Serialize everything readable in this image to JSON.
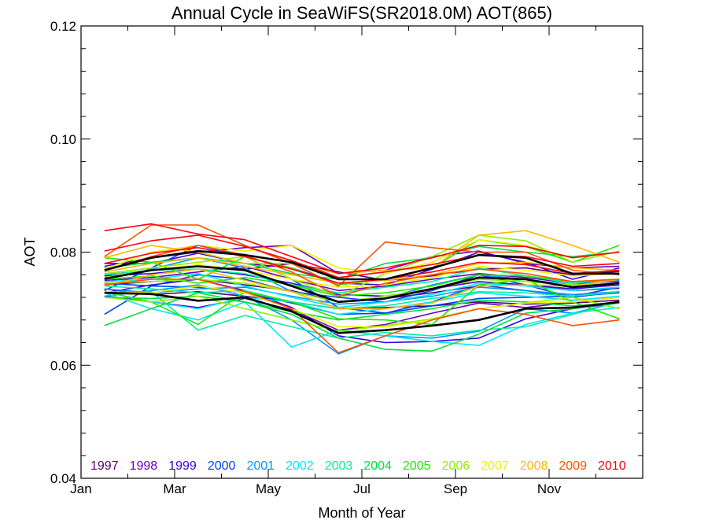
{
  "chart_data": {
    "type": "line",
    "title": "Annual Cycle in SeaWiFS(SR2018.0M) AOT(865)",
    "xlabel": "Month of Year",
    "ylabel": "AOT",
    "xlim": [
      1,
      13
    ],
    "ylim": [
      0.04,
      0.12
    ],
    "x_ticks": [
      {
        "x": 1,
        "label": "Jan"
      },
      {
        "x": 3,
        "label": "Mar"
      },
      {
        "x": 5,
        "label": "May"
      },
      {
        "x": 7,
        "label": "Jul"
      },
      {
        "x": 9,
        "label": "Sep"
      },
      {
        "x": 11,
        "label": "Nov"
      }
    ],
    "y_ticks": [
      {
        "y": 0.04,
        "label": "0.04"
      },
      {
        "y": 0.06,
        "label": "0.06"
      },
      {
        "y": 0.08,
        "label": "0.08"
      },
      {
        "y": 0.1,
        "label": "0.10"
      },
      {
        "y": 0.12,
        "label": "0.12"
      }
    ],
    "grid": false,
    "legend_position": "bottom",
    "x": [
      1.5,
      2.5,
      3.5,
      4.5,
      5.5,
      6.5,
      7.5,
      8.5,
      9.5,
      10.5,
      11.5,
      12.5
    ],
    "series": [
      {
        "name": "1997",
        "color": "#5a0070",
        "values": [
          0.0735,
          0.0725,
          0.073,
          0.0722,
          0.0712,
          0.07,
          0.0702,
          0.0705,
          0.0712,
          0.0708,
          0.071,
          0.0715
        ]
      },
      {
        "name": "",
        "color": "#5a0070",
        "values": [
          0.076,
          0.0768,
          0.0775,
          0.077,
          0.078,
          0.0765,
          0.075,
          0.0758,
          0.077,
          0.0772,
          0.076,
          0.0766
        ]
      },
      {
        "name": "",
        "color": "#5a0070",
        "values": [
          0.0742,
          0.0748,
          0.0752,
          0.0742,
          0.0732,
          0.0712,
          0.0718,
          0.0728,
          0.074,
          0.0742,
          0.0732,
          0.0736
        ]
      },
      {
        "name": "1998",
        "color": "#6600c0",
        "values": [
          0.0775,
          0.079,
          0.08,
          0.0808,
          0.0812,
          0.0762,
          0.0768,
          0.0792,
          0.0802,
          0.078,
          0.0772,
          0.0775
        ]
      },
      {
        "name": "",
        "color": "#6600c0",
        "values": [
          0.0722,
          0.0712,
          0.0702,
          0.0718,
          0.0698,
          0.0662,
          0.0672,
          0.0692,
          0.071,
          0.0702,
          0.0712,
          0.072
        ]
      },
      {
        "name": "",
        "color": "#6600c0",
        "values": [
          0.075,
          0.0755,
          0.0765,
          0.0775,
          0.0752,
          0.0732,
          0.074,
          0.0752,
          0.0762,
          0.0755,
          0.0745,
          0.0748
        ]
      },
      {
        "name": "1999",
        "color": "#3a00e0",
        "values": [
          0.078,
          0.078,
          0.0798,
          0.078,
          0.0772,
          0.0745,
          0.0742,
          0.077,
          0.08,
          0.0782,
          0.0752,
          0.0772
        ]
      },
      {
        "name": "",
        "color": "#3a00e0",
        "values": [
          0.0728,
          0.0742,
          0.0752,
          0.0732,
          0.0702,
          0.0652,
          0.064,
          0.0642,
          0.0648,
          0.0682,
          0.07,
          0.071
        ]
      },
      {
        "name": "",
        "color": "#3a00e0",
        "values": [
          0.0758,
          0.0762,
          0.077,
          0.076,
          0.0745,
          0.0725,
          0.0722,
          0.0735,
          0.0748,
          0.0742,
          0.0735,
          0.0742
        ]
      },
      {
        "name": "2000",
        "color": "#0040ff",
        "values": [
          0.069,
          0.074,
          0.076,
          0.0752,
          0.073,
          0.072,
          0.0712,
          0.0732,
          0.076,
          0.0742,
          0.072,
          0.073
        ]
      },
      {
        "name": "",
        "color": "#0040ff",
        "values": [
          0.0732,
          0.0772,
          0.0812,
          0.0792,
          0.0752,
          0.0702,
          0.0692,
          0.0712,
          0.0742,
          0.0732,
          0.0722,
          0.0738
        ]
      },
      {
        "name": "",
        "color": "#0040ff",
        "values": [
          0.0745,
          0.074,
          0.0738,
          0.0728,
          0.071,
          0.069,
          0.0692,
          0.0705,
          0.0718,
          0.072,
          0.0722,
          0.0728
        ]
      },
      {
        "name": "2001",
        "color": "#0098ff",
        "values": [
          0.0722,
          0.0732,
          0.0742,
          0.0722,
          0.068,
          0.062,
          0.0652,
          0.0648,
          0.066,
          0.07,
          0.0692,
          0.0712
        ]
      },
      {
        "name": "",
        "color": "#0098ff",
        "values": [
          0.0752,
          0.077,
          0.079,
          0.0772,
          0.073,
          0.0712,
          0.0718,
          0.0742,
          0.076,
          0.0752,
          0.0742,
          0.075
        ]
      },
      {
        "name": "",
        "color": "#0098ff",
        "values": [
          0.0735,
          0.0728,
          0.0735,
          0.0738,
          0.0722,
          0.0708,
          0.0712,
          0.0722,
          0.0738,
          0.0732,
          0.0725,
          0.073
        ]
      },
      {
        "name": "2002",
        "color": "#00e8ff",
        "values": [
          0.0728,
          0.07,
          0.068,
          0.0712,
          0.0632,
          0.0662,
          0.0652,
          0.0642,
          0.0635,
          0.0672,
          0.0692,
          0.0702
        ]
      },
      {
        "name": "",
        "color": "#00e8ff",
        "values": [
          0.0748,
          0.0752,
          0.0762,
          0.074,
          0.072,
          0.0702,
          0.0712,
          0.0725,
          0.0745,
          0.074,
          0.0732,
          0.0738
        ]
      },
      {
        "name": "",
        "color": "#00e8ff",
        "values": [
          0.073,
          0.0712,
          0.07,
          0.072,
          0.0712,
          0.069,
          0.07,
          0.0712,
          0.0728,
          0.0722,
          0.0715,
          0.0722
        ]
      },
      {
        "name": "2003",
        "color": "#00f0a0",
        "values": [
          0.0728,
          0.073,
          0.0662,
          0.0688,
          0.0668,
          0.0648,
          0.0658,
          0.0652,
          0.0662,
          0.0668,
          0.069,
          0.0712
        ]
      },
      {
        "name": "",
        "color": "#00f0a0",
        "values": [
          0.076,
          0.0768,
          0.077,
          0.0762,
          0.0742,
          0.0728,
          0.0738,
          0.0748,
          0.0772,
          0.0758,
          0.0745,
          0.0752
        ]
      },
      {
        "name": "",
        "color": "#00f0a0",
        "values": [
          0.074,
          0.0735,
          0.0728,
          0.0732,
          0.0712,
          0.07,
          0.0705,
          0.0718,
          0.073,
          0.0728,
          0.0722,
          0.073
        ]
      },
      {
        "name": "2004",
        "color": "#00e040",
        "values": [
          0.067,
          0.07,
          0.0728,
          0.0712,
          0.069,
          0.0648,
          0.0628,
          0.0625,
          0.0655,
          0.0692,
          0.07,
          0.0712
        ]
      },
      {
        "name": "",
        "color": "#00e040",
        "values": [
          0.0772,
          0.0782,
          0.079,
          0.078,
          0.0762,
          0.0752,
          0.078,
          0.079,
          0.081,
          0.08,
          0.0792,
          0.08
        ]
      },
      {
        "name": "",
        "color": "#00e040",
        "values": [
          0.072,
          0.0718,
          0.0722,
          0.0712,
          0.0695,
          0.068,
          0.069,
          0.07,
          0.0715,
          0.0712,
          0.0705,
          0.071
        ]
      },
      {
        "name": "2005",
        "color": "#20e800",
        "values": [
          0.073,
          0.0712,
          0.0672,
          0.073,
          0.0712,
          0.0682,
          0.068,
          0.0672,
          0.0742,
          0.0752,
          0.0712,
          0.0682
        ]
      },
      {
        "name": "",
        "color": "#20e800",
        "values": [
          0.079,
          0.0782,
          0.0752,
          0.0792,
          0.0772,
          0.0742,
          0.0752,
          0.0772,
          0.0822,
          0.081,
          0.0782,
          0.0812
        ]
      },
      {
        "name": "",
        "color": "#20e800",
        "values": [
          0.0752,
          0.0758,
          0.0745,
          0.0755,
          0.0742,
          0.0722,
          0.0728,
          0.074,
          0.076,
          0.0758,
          0.0748,
          0.0752
        ]
      },
      {
        "name": "2006",
        "color": "#90f000",
        "values": [
          0.0762,
          0.0772,
          0.0782,
          0.0792,
          0.0752,
          0.0722,
          0.0762,
          0.0792,
          0.083,
          0.082,
          0.0782,
          0.0802
        ]
      },
      {
        "name": "",
        "color": "#90f000",
        "values": [
          0.072,
          0.0712,
          0.0722,
          0.07,
          0.068,
          0.066,
          0.067,
          0.0682,
          0.07,
          0.071,
          0.072,
          0.07
        ]
      },
      {
        "name": "",
        "color": "#90f000",
        "values": [
          0.0745,
          0.0748,
          0.0752,
          0.0745,
          0.073,
          0.0712,
          0.0722,
          0.0735,
          0.0752,
          0.0748,
          0.0742,
          0.0745
        ]
      },
      {
        "name": "2007",
        "color": "#f0f000",
        "values": [
          0.077,
          0.08,
          0.0812,
          0.0802,
          0.0812,
          0.0772,
          0.0762,
          0.0782,
          0.0822,
          0.0812,
          0.079,
          0.08
        ]
      },
      {
        "name": "",
        "color": "#f0f000",
        "values": [
          0.073,
          0.0728,
          0.074,
          0.0728,
          0.07,
          0.0668,
          0.0668,
          0.068,
          0.07,
          0.071,
          0.0712,
          0.072
        ]
      },
      {
        "name": "",
        "color": "#f0f000",
        "values": [
          0.0755,
          0.0768,
          0.0778,
          0.0768,
          0.0752,
          0.0738,
          0.0742,
          0.0755,
          0.0775,
          0.0768,
          0.0758,
          0.0762
        ]
      },
      {
        "name": "2008",
        "color": "#ffb800",
        "values": [
          0.079,
          0.0812,
          0.08,
          0.078,
          0.078,
          0.0762,
          0.0768,
          0.0772,
          0.083,
          0.0838,
          0.0812,
          0.0782
        ]
      },
      {
        "name": "",
        "color": "#ffb800",
        "values": [
          0.074,
          0.076,
          0.077,
          0.075,
          0.073,
          0.07,
          0.07,
          0.071,
          0.074,
          0.0742,
          0.074,
          0.0752
        ]
      },
      {
        "name": "",
        "color": "#ffb800",
        "values": [
          0.0765,
          0.078,
          0.079,
          0.0775,
          0.076,
          0.0745,
          0.075,
          0.076,
          0.078,
          0.0782,
          0.0772,
          0.0768
        ]
      },
      {
        "name": "2009",
        "color": "#ff5000",
        "values": [
          0.0792,
          0.0848,
          0.0848,
          0.0812,
          0.078,
          0.074,
          0.0818,
          0.0808,
          0.08,
          0.08,
          0.0768,
          0.076
        ]
      },
      {
        "name": "",
        "color": "#ff5000",
        "values": [
          0.0742,
          0.0752,
          0.0752,
          0.073,
          0.07,
          0.0622,
          0.0652,
          0.068,
          0.07,
          0.069,
          0.067,
          0.068
        ]
      },
      {
        "name": "",
        "color": "#ff5000",
        "values": [
          0.0768,
          0.0792,
          0.0812,
          0.0795,
          0.0765,
          0.0722,
          0.0745,
          0.076,
          0.077,
          0.0762,
          0.0748,
          0.0752
        ]
      },
      {
        "name": "2010",
        "color": "#ff0010",
        "values": [
          0.0838,
          0.085,
          0.0832,
          0.0822,
          0.0792,
          0.0762,
          0.0772,
          0.079,
          0.0812,
          0.081,
          0.079,
          0.08
        ]
      },
      {
        "name": "",
        "color": "#ff0010",
        "values": [
          0.0802,
          0.082,
          0.083,
          0.081,
          0.0785,
          0.0755,
          0.0765,
          0.0778,
          0.0795,
          0.0792,
          0.0775,
          0.078
        ]
      },
      {
        "name": "",
        "color": "#ff0010",
        "values": [
          0.078,
          0.0798,
          0.0808,
          0.0792,
          0.077,
          0.0745,
          0.0752,
          0.0765,
          0.0782,
          0.0778,
          0.0762,
          0.0768
        ]
      },
      {
        "name": "",
        "color": "#000000",
        "width": 2.6,
        "values": [
          0.0768,
          0.079,
          0.0802,
          0.0795,
          0.0782,
          0.0752,
          0.0752,
          0.0772,
          0.0795,
          0.079,
          0.0762,
          0.0762
        ]
      },
      {
        "name": "",
        "color": "#000000",
        "width": 2.6,
        "values": [
          0.0753,
          0.0768,
          0.0775,
          0.0768,
          0.074,
          0.0712,
          0.0718,
          0.0735,
          0.0755,
          0.0752,
          0.0738,
          0.0745
        ]
      },
      {
        "name": "",
        "color": "#000000",
        "width": 2.6,
        "values": [
          0.0728,
          0.0726,
          0.0714,
          0.072,
          0.0695,
          0.0657,
          0.0662,
          0.067,
          0.068,
          0.07,
          0.0702,
          0.0712
        ]
      }
    ]
  }
}
